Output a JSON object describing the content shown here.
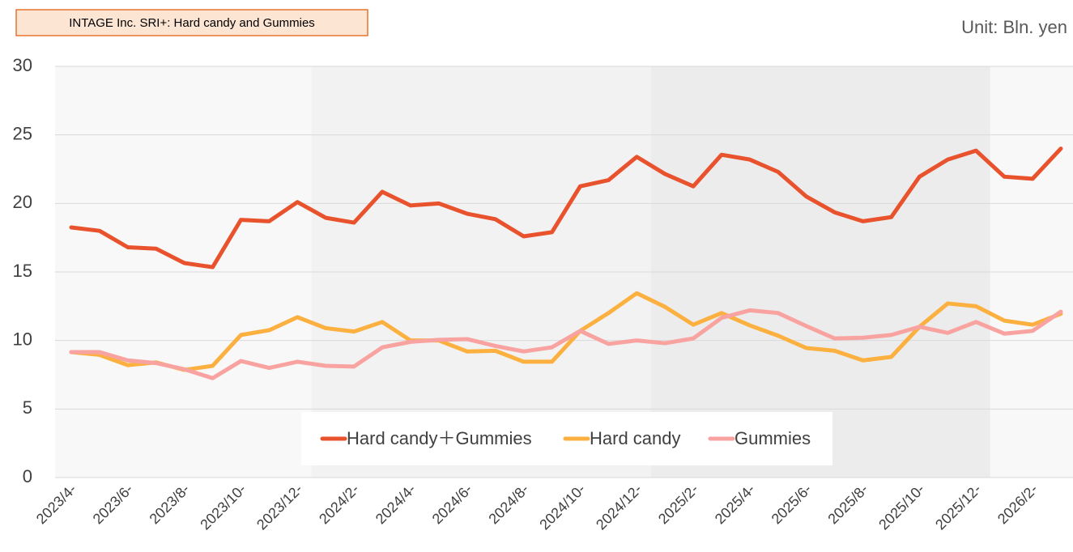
{
  "chart_data": {
    "type": "line",
    "title": "INTAGE Inc. SRI+: Hard candy and Gummies",
    "unit_label": "Unit: Bln. yen",
    "categories": [
      "2023/4-",
      null,
      "2023/6-",
      null,
      "2023/8-",
      null,
      "2023/10-",
      null,
      "2023/12-",
      null,
      "2024/2-",
      null,
      "2024/4-",
      null,
      "2024/6-",
      null,
      "2024/8-",
      null,
      "2024/10-",
      null,
      "2024/12-",
      null,
      "2025/2-",
      null,
      "2025/4-",
      null,
      "2025/6-",
      null,
      "2025/8-",
      null,
      "2025/10-",
      null,
      "2025/12-",
      null,
      "2026/2-",
      null
    ],
    "series": [
      {
        "name": "Hard candy＋Gummies",
        "color": "#e8532e",
        "values": [
          18.25,
          18.0,
          16.8,
          16.7,
          15.65,
          15.35,
          18.8,
          18.7,
          20.1,
          18.95,
          18.6,
          20.85,
          19.85,
          20.0,
          19.25,
          18.85,
          17.6,
          17.9,
          21.25,
          21.7,
          23.4,
          22.15,
          21.25,
          23.55,
          23.2,
          22.3,
          20.5,
          19.35,
          18.7,
          19.0,
          21.95,
          23.2,
          23.85,
          21.95,
          21.8,
          24.0
        ]
      },
      {
        "name": "Hard candy",
        "color": "#fbb040",
        "values": [
          9.15,
          8.95,
          8.2,
          8.4,
          7.85,
          8.15,
          10.4,
          10.75,
          11.7,
          10.9,
          10.65,
          11.35,
          10.0,
          10.0,
          9.2,
          9.25,
          8.45,
          8.45,
          10.7,
          12.0,
          13.45,
          12.45,
          11.15,
          12.0,
          11.1,
          10.35,
          9.45,
          9.25,
          8.55,
          8.8,
          11.0,
          12.7,
          12.5,
          11.45,
          11.15,
          11.95
        ]
      },
      {
        "name": "Gummies",
        "color": "#f8a3a0",
        "values": [
          9.15,
          9.15,
          8.55,
          8.35,
          7.9,
          7.25,
          8.5,
          8.0,
          8.45,
          8.15,
          8.1,
          9.5,
          9.9,
          10.05,
          10.1,
          9.6,
          9.2,
          9.5,
          10.7,
          9.75,
          10.0,
          9.8,
          10.15,
          11.65,
          12.2,
          12.0,
          11.05,
          10.15,
          10.2,
          10.4,
          11.0,
          10.55,
          11.35,
          10.5,
          10.7,
          12.1
        ]
      }
    ],
    "ylim": [
      0,
      30
    ],
    "yticks": [
      0,
      5,
      10,
      15,
      20,
      25,
      30
    ],
    "grid": true,
    "legend": "bottom"
  }
}
